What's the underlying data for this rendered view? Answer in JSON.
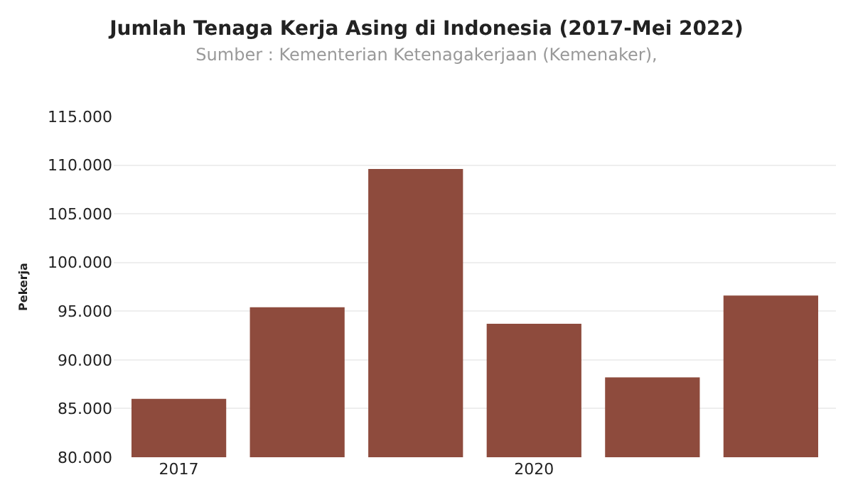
{
  "chart_data": {
    "type": "bar",
    "title": "Jumlah Tenaga Kerja Asing di Indonesia (2017-Mei 2022)",
    "subtitle": "Sumber : Kementerian Ketenagakerjaan (Kemenaker),",
    "ylabel": "Pekerja",
    "categories": [
      "2017",
      null,
      null,
      "2020",
      null,
      null
    ],
    "values": [
      86000,
      95400,
      109600,
      93700,
      88200,
      96600
    ],
    "color": "#8e4b3d",
    "ylim": [
      80000,
      115000
    ],
    "yticks": [
      {
        "value": 80000,
        "label": "80.000"
      },
      {
        "value": 85000,
        "label": "85.000"
      },
      {
        "value": 90000,
        "label": "90.000"
      },
      {
        "value": 95000,
        "label": "95.000"
      },
      {
        "value": 100000,
        "label": "100.000"
      },
      {
        "value": 105000,
        "label": "105.000"
      },
      {
        "value": 110000,
        "label": "110.000"
      },
      {
        "value": 115000,
        "label": "115.000"
      }
    ],
    "grid": "y"
  }
}
